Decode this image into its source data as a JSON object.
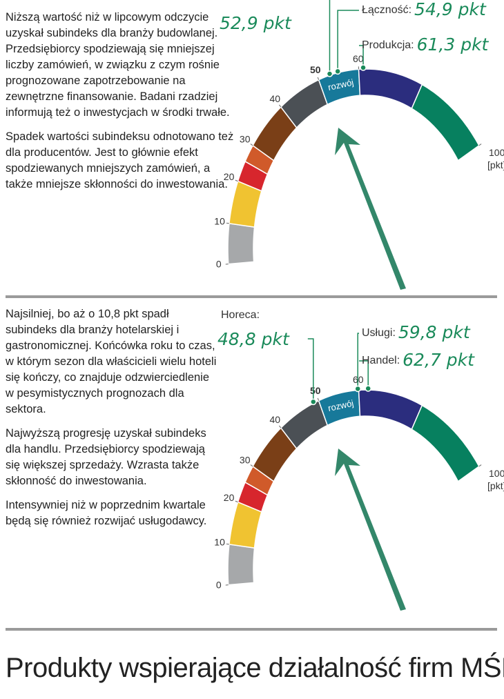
{
  "sections": [
    {
      "paragraphs": [
        "Niższą wartość niż w lipcowym odczycie uzyskał subindeks dla branży budowlanej. Przedsiębiorcy spodziewają się mniejszej liczby zamówień, w związku z czym rośnie prognozowane zapotrzebowanie na zewnętrzne finansowanie. Badani rzadziej informują też o inwestycjach w środki trwałe.",
        "Spadek wartości subindeksu odnotowano też dla producentów. Jest to głównie efekt spodziewanych mniejszych zamówień, a także mniejsze skłonności do inwestowania."
      ],
      "gauge": {
        "ticks": [
          0,
          10,
          20,
          30,
          40,
          50,
          60,
          100
        ],
        "unit": "[pkt]",
        "band_label": "rozwój",
        "callouts": [
          {
            "value": 52.9,
            "value_label": "52,9 pkt"
          },
          {
            "name": "Łączność:",
            "value": 54.9,
            "value_label": "54,9 pkt"
          },
          {
            "name": "Produkcja:",
            "value": 61.3,
            "value_label": "61,3 pkt"
          }
        ]
      }
    },
    {
      "paragraphs": [
        "Najsilniej, bo aż o 10,8 pkt spadł subindeks dla branży hotelarskiej i gastronomicznej. Końcówka roku to czas, w którym sezon dla właścicieli wielu hoteli się kończy, co znajduje odzwierciedlenie w pesymistycznych prognozach dla sektora.",
        "Najwyższą progresję uzyskał subindeks dla handlu. Przedsiębiorcy spodziewają się większej sprzedaży. Wzrasta także skłonność do inwestowania.",
        "Intensywniej niż w poprzednim kwartale będą się również rozwijać usługodawcy."
      ],
      "gauge": {
        "ticks": [
          0,
          10,
          20,
          30,
          40,
          50,
          60,
          100
        ],
        "unit": "[pkt]",
        "band_label": "rozwój",
        "callouts": [
          {
            "name": "Horeca:",
            "value": 48.8,
            "value_label": "48,8 pkt"
          },
          {
            "name": "Usługi:",
            "value": 59.8,
            "value_label": "59,8 pkt"
          },
          {
            "name": "Handel:",
            "value": 62.7,
            "value_label": "62,7 pkt"
          }
        ]
      }
    }
  ],
  "heading": "Produkty wspierające działalność firm MŚP"
}
